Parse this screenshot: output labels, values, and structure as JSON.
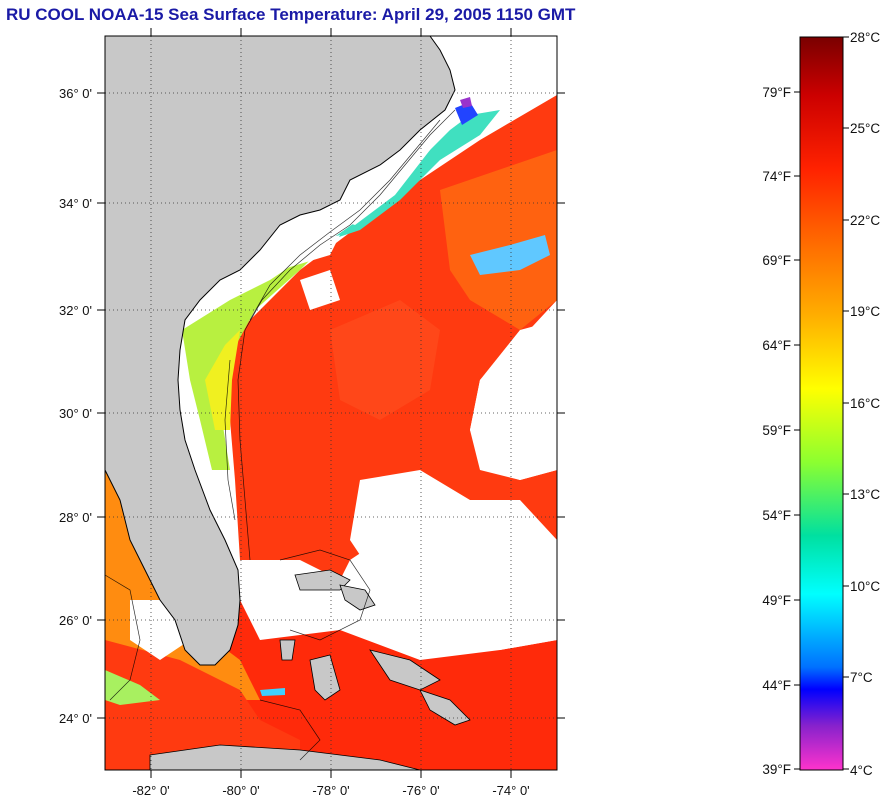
{
  "title": "RU COOL  NOAA-15  Sea Surface Temperature:  April 29, 2005 1150 GMT",
  "map": {
    "lat_ticks": [
      "36° 0'",
      "34° 0'",
      "32° 0'",
      "30° 0'",
      "28° 0'",
      "26° 0'",
      "24° 0'"
    ],
    "lon_ticks": [
      "-82° 0'",
      "-80° 0'",
      "-78° 0'",
      "-76° 0'",
      "-74° 0'"
    ],
    "lat_range": [
      23,
      37
    ],
    "lon_range": [
      -83,
      -73
    ],
    "grid": "dotted",
    "colors": {
      "land": "#c8c8c8",
      "clouds": "#ffffff",
      "warm_water": "#ff3010"
    }
  },
  "colorbar": {
    "celsius_labels": [
      "28°C",
      "25°C",
      "22°C",
      "19°C",
      "16°C",
      "13°C",
      "10°C",
      "7°C",
      "4°C"
    ],
    "fahrenheit_labels": [
      "79°F",
      "74°F",
      "69°F",
      "64°F",
      "59°F",
      "54°F",
      "49°F",
      "44°F",
      "39°F"
    ],
    "range_c": [
      4,
      28
    ]
  }
}
